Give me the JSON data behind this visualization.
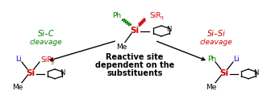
{
  "bg_color": "#ffffff",
  "fig_width": 3.31,
  "fig_height": 1.14,
  "dpi": 100,
  "left_label_Si_C": "Si–C",
  "left_label_cleavage": "cleavage",
  "left_label_color": "#008000",
  "right_label_Si_Si": "Si–Si",
  "right_label_cleavage": "cleavage",
  "right_label_color": "#cc0000",
  "center_text_line1": "Reactive site",
  "center_text_line2": "dependent on the",
  "center_text_line3": "substituents",
  "center_text_color": "#000000"
}
